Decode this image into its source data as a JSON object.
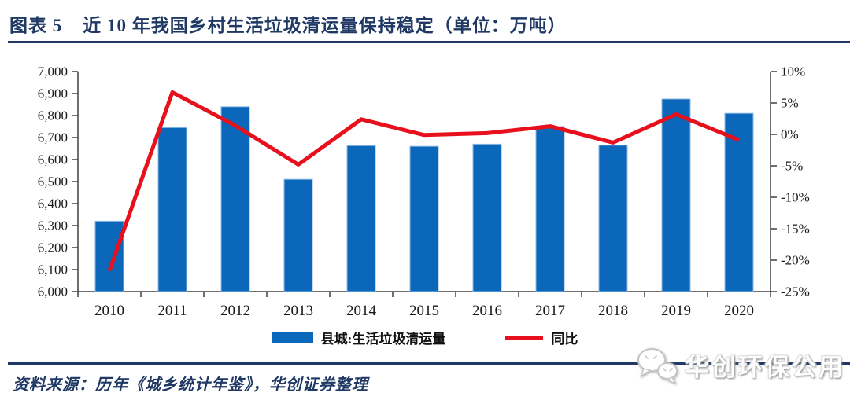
{
  "figure": {
    "label": "图表 5",
    "title": "近 10 年我国乡村生活垃圾清运量保持稳定（单位：万吨）",
    "accent_color": "#1f3864"
  },
  "chart_data": {
    "type": "bar+line combo",
    "categories": [
      "2010",
      "2011",
      "2012",
      "2013",
      "2014",
      "2015",
      "2016",
      "2017",
      "2018",
      "2019",
      "2020"
    ],
    "series": [
      {
        "name": "县城:生活垃圾清运量",
        "type": "bar",
        "axis": "left",
        "color": "#0a67b9",
        "edge_color": "#8ab8e4",
        "values": [
          6320,
          6745,
          6840,
          6510,
          6663,
          6660,
          6670,
          6750,
          6665,
          6875,
          6810
        ]
      },
      {
        "name": "同比",
        "type": "line",
        "axis": "right",
        "color": "#e8101c",
        "values": [
          -21.7,
          6.7,
          1.4,
          -4.8,
          2.4,
          -0.1,
          0.2,
          1.3,
          -1.3,
          3.2,
          -0.9
        ]
      }
    ],
    "left_axis": {
      "min": 6000,
      "max": 7000,
      "step": 100,
      "tick_labels": [
        "7,000",
        "6,900",
        "6,800",
        "6,700",
        "6,600",
        "6,500",
        "6,400",
        "6,300",
        "6,200",
        "6,100",
        "6,000"
      ]
    },
    "right_axis": {
      "min": -25,
      "max": 10,
      "step": 5,
      "tick_labels": [
        "10%",
        "5%",
        "0%",
        "-5%",
        "-10%",
        "-15%",
        "-20%",
        "-25%"
      ]
    },
    "grid": false,
    "legend_position": "bottom"
  },
  "legend": {
    "bar_label": "县城:生活垃圾清运量",
    "line_label": "同比"
  },
  "source_note": "资料来源：历年《城乡统计年鉴》，华创证券整理",
  "watermark": {
    "icon": "wechat-icon",
    "text": "华创环保公用"
  }
}
